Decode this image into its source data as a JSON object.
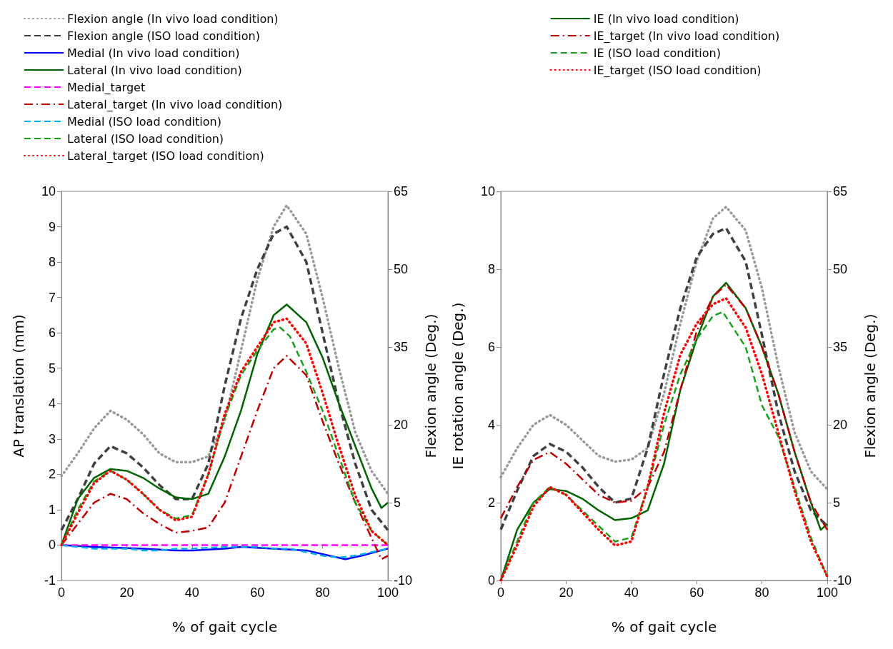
{
  "chart_data": [
    {
      "type": "line",
      "xlabel": "% of gait cycle",
      "ylabel": "AP translation (mm)",
      "y2label": "Flexion angle (Deg.)",
      "xlim": [
        0,
        100
      ],
      "xticks": [
        0,
        20,
        40,
        60,
        80,
        100
      ],
      "ylim": [
        -1,
        10
      ],
      "yticks": [
        -1,
        0,
        1,
        2,
        3,
        4,
        5,
        6,
        7,
        8,
        9,
        10
      ],
      "y2lim": [
        -10,
        65
      ],
      "y2ticks": [
        -10,
        5,
        20,
        35,
        50,
        65
      ],
      "grid": false,
      "legend": "top left",
      "marker": "none",
      "series": [
        {
          "name": "Flexion angle (In vivo load condition)",
          "color": "#999999",
          "line_style": "dotted",
          "axis": "y2",
          "x": [
            0,
            5,
            10,
            15,
            20,
            25,
            30,
            35,
            40,
            45,
            50,
            55,
            60,
            65,
            69,
            75,
            80,
            85,
            90,
            95,
            100
          ],
          "values": [
            10.1,
            14.5,
            19.3,
            22.7,
            21,
            18.2,
            14.5,
            12.8,
            12.8,
            13.9,
            20.7,
            34.3,
            48,
            58.2,
            62.3,
            56.8,
            44.5,
            30.9,
            18.6,
            11.1,
            6.7
          ]
        },
        {
          "name": "Flexion angle (ISO load condition)",
          "color": "#404040",
          "line_style": "dashed",
          "axis": "y2",
          "x": [
            0,
            5,
            10,
            15,
            20,
            25,
            30,
            35,
            40,
            45,
            50,
            55,
            60,
            65,
            69,
            75,
            80,
            85,
            90,
            95,
            100
          ],
          "values": [
            -0.3,
            5.7,
            12.5,
            15.9,
            14.5,
            11.8,
            8.4,
            5.7,
            5.7,
            12.5,
            27.5,
            40.5,
            50,
            56.8,
            58.2,
            51.4,
            37.7,
            24.1,
            12.5,
            3.6,
            -0.3
          ]
        },
        {
          "name": "Medial (In vivo load condition)",
          "color": "#0000ff",
          "line_style": "solid",
          "x": [
            0,
            10,
            25,
            35,
            40,
            50,
            55,
            65,
            75,
            82,
            87,
            92,
            96,
            100
          ],
          "values": [
            0,
            -0.05,
            -0.1,
            -0.15,
            -0.15,
            -0.1,
            -0.05,
            -0.1,
            -0.15,
            -0.3,
            -0.4,
            -0.3,
            -0.2,
            -0.1
          ]
        },
        {
          "name": "Lateral (In vivo load condition)",
          "color": "#006400",
          "line_style": "solid",
          "x": [
            0,
            5,
            10,
            15,
            20,
            25,
            30,
            35,
            40,
            45,
            50,
            55,
            60,
            65,
            69,
            75,
            80,
            85,
            90,
            95,
            98,
            100
          ],
          "values": [
            0,
            1.3,
            1.9,
            2.15,
            2.1,
            1.9,
            1.6,
            1.35,
            1.3,
            1.45,
            2.5,
            3.8,
            5.4,
            6.5,
            6.8,
            6.3,
            5.3,
            4,
            2.8,
            1.6,
            1.05,
            1.2
          ]
        },
        {
          "name": "Medial_target",
          "color": "#ff00ff",
          "line_style": "dashed",
          "x": [
            0,
            100
          ],
          "values": [
            0,
            0
          ]
        },
        {
          "name": "Lateral_target (In vivo load condition)",
          "color": "#c00000",
          "line_style": "dashdot",
          "x": [
            0,
            5,
            10,
            15,
            20,
            25,
            30,
            35,
            40,
            45,
            50,
            55,
            60,
            65,
            69,
            75,
            80,
            85,
            90,
            95,
            98,
            100
          ],
          "values": [
            0,
            0.6,
            1.2,
            1.45,
            1.3,
            0.9,
            0.6,
            0.35,
            0.4,
            0.5,
            1.2,
            2.5,
            3.8,
            5,
            5.35,
            4.8,
            3.5,
            2.3,
            1.2,
            0.2,
            -0.4,
            -0.3
          ]
        },
        {
          "name": "Medial (ISO load condition)",
          "color": "#00b0f0",
          "line_style": "dashed",
          "x": [
            0,
            5,
            10,
            20,
            25,
            30,
            35,
            40,
            50,
            55,
            60,
            65,
            70,
            75,
            80,
            85,
            90,
            95,
            100
          ],
          "values": [
            0,
            -0.05,
            -0.1,
            -0.1,
            -0.15,
            -0.15,
            -0.1,
            -0.1,
            -0.05,
            -0.05,
            -0.05,
            -0.1,
            -0.1,
            -0.2,
            -0.3,
            -0.35,
            -0.3,
            -0.2,
            -0.1
          ]
        },
        {
          "name": "Lateral (ISO load condition)",
          "color": "#1aa01a",
          "line_style": "dashed",
          "x": [
            0,
            5,
            10,
            15,
            20,
            25,
            30,
            35,
            40,
            45,
            50,
            55,
            60,
            65,
            67,
            70,
            75,
            80,
            85,
            90,
            95,
            100
          ],
          "values": [
            0,
            1,
            1.8,
            2.1,
            1.85,
            1.45,
            1,
            0.75,
            0.85,
            2,
            3.6,
            4.8,
            5.5,
            6.1,
            6.15,
            5.9,
            4.9,
            3.8,
            2.5,
            1.2,
            0.4,
            0
          ]
        },
        {
          "name": "Lateral_target (ISO load condition)",
          "color": "#ff0000",
          "line_style": "dotted",
          "x": [
            0,
            5,
            10,
            15,
            20,
            25,
            30,
            35,
            40,
            45,
            50,
            55,
            60,
            65,
            69,
            75,
            80,
            85,
            90,
            95,
            100
          ],
          "values": [
            0,
            0.9,
            1.75,
            2.1,
            1.85,
            1.45,
            1,
            0.7,
            0.8,
            2,
            3.7,
            4.9,
            5.6,
            6.3,
            6.4,
            5.7,
            4.3,
            2.8,
            1.4,
            0.4,
            0
          ]
        }
      ]
    },
    {
      "type": "line",
      "xlabel": "% of gait cycle",
      "ylabel": "IE rotation angle (Deg.)",
      "y2label": "Flexion angle (Deg.)",
      "xlim": [
        0,
        100
      ],
      "xticks": [
        0,
        20,
        40,
        60,
        80,
        100
      ],
      "ylim": [
        0,
        10
      ],
      "yticks": [
        0,
        2,
        4,
        6,
        8,
        10
      ],
      "y2lim": [
        -10,
        65
      ],
      "y2ticks": [
        -10,
        5,
        20,
        35,
        50,
        65
      ],
      "grid": false,
      "legend": "top",
      "marker": "none",
      "series": [
        {
          "color": "#999999",
          "line_style": "dotted",
          "axis": "y2",
          "x": [
            0,
            5,
            10,
            15,
            20,
            25,
            30,
            35,
            40,
            45,
            50,
            55,
            60,
            65,
            69,
            75,
            80,
            85,
            90,
            95,
            100
          ],
          "values": [
            9.9,
            15.5,
            20,
            21.9,
            20,
            17,
            14,
            12.9,
            13.3,
            15.5,
            26,
            39.5,
            51.5,
            59.8,
            62,
            57.5,
            46.3,
            31.3,
            18.5,
            11,
            7.6
          ]
        },
        {
          "color": "#404040",
          "line_style": "dashed",
          "axis": "y2",
          "x": [
            0,
            5,
            10,
            15,
            20,
            25,
            30,
            35,
            40,
            45,
            50,
            55,
            60,
            65,
            69,
            75,
            80,
            85,
            90,
            95,
            100
          ],
          "values": [
            -0.2,
            7.3,
            14,
            16.3,
            14.8,
            11.8,
            8,
            5,
            5.8,
            15.5,
            29.8,
            42.5,
            52.3,
            56.8,
            57.9,
            51.5,
            37.3,
            22.3,
            11,
            3.5,
            0.5
          ]
        },
        {
          "name": "IE (In vivo load condition)",
          "color": "#006400",
          "line_style": "solid",
          "x": [
            0,
            5,
            10,
            15,
            20,
            25,
            30,
            35,
            40,
            45,
            50,
            55,
            60,
            65,
            69,
            75,
            80,
            85,
            90,
            95,
            98,
            100
          ],
          "values": [
            0,
            1.3,
            2,
            2.35,
            2.3,
            2.1,
            1.8,
            1.55,
            1.6,
            1.8,
            3,
            4.9,
            6.2,
            7.3,
            7.65,
            7,
            6,
            4.8,
            3.3,
            2,
            1.3,
            1.45
          ]
        },
        {
          "name": "IE_target (In vivo load condition)",
          "color": "#c00000",
          "line_style": "dashdot",
          "x": [
            0,
            5,
            10,
            15,
            20,
            25,
            30,
            35,
            40,
            45,
            50,
            55,
            60,
            65,
            69,
            75,
            80,
            85,
            90,
            95,
            100
          ],
          "values": [
            1.6,
            2.4,
            3.1,
            3.3,
            3,
            2.6,
            2.2,
            2,
            2.05,
            2.4,
            3.3,
            4.9,
            6.4,
            7.3,
            7.6,
            7,
            6,
            4.8,
            3.3,
            2,
            1.3
          ]
        },
        {
          "name": "IE (ISO load condition)",
          "color": "#1aa01a",
          "line_style": "dashed",
          "x": [
            0,
            5,
            10,
            15,
            20,
            25,
            30,
            35,
            40,
            45,
            50,
            55,
            60,
            65,
            68,
            75,
            80,
            85,
            90,
            95,
            100
          ],
          "values": [
            0,
            1,
            2,
            2.4,
            2.2,
            1.8,
            1.4,
            1,
            1.1,
            2.4,
            4,
            5.3,
            6.2,
            6.8,
            6.9,
            6,
            4.5,
            3.7,
            2.4,
            1.1,
            0.1
          ]
        },
        {
          "name": "IE_target (ISO load condition)",
          "color": "#ff0000",
          "line_style": "dotted",
          "x": [
            0,
            5,
            10,
            15,
            20,
            25,
            30,
            35,
            40,
            45,
            50,
            55,
            60,
            65,
            69,
            75,
            80,
            85,
            90,
            95,
            100
          ],
          "values": [
            0,
            0.9,
            1.9,
            2.4,
            2.2,
            1.75,
            1.3,
            0.9,
            1,
            2.4,
            4.3,
            5.8,
            6.6,
            7.1,
            7.25,
            6.5,
            5.3,
            3.8,
            2.3,
            1,
            0.1
          ]
        }
      ]
    }
  ]
}
